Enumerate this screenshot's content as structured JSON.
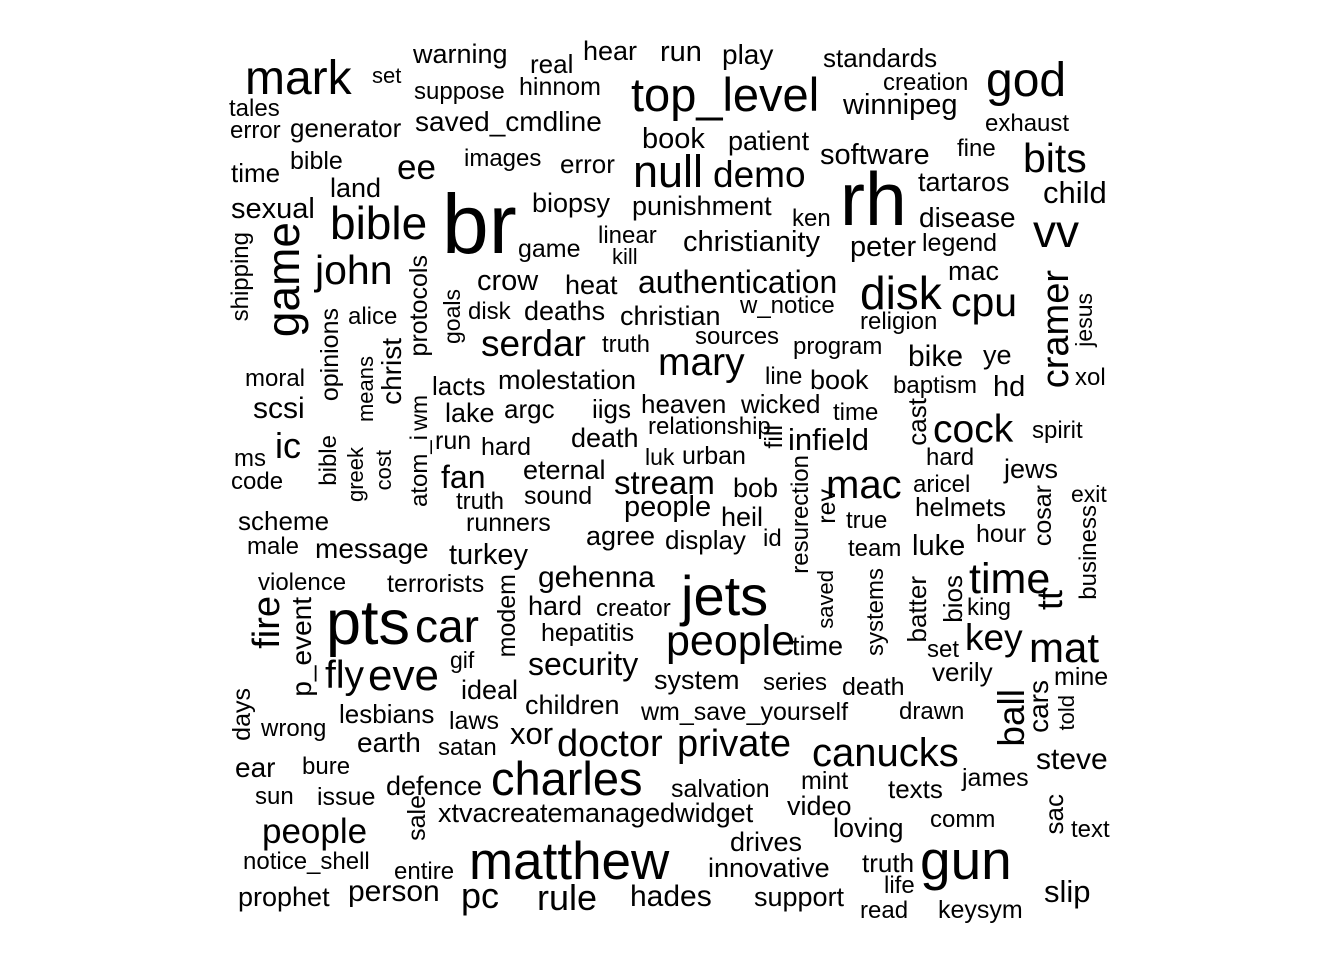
{
  "title": "",
  "text_color": "#000000",
  "background_color": "#ffffff",
  "words": [
    "mark",
    "set",
    "warning",
    "real",
    "hear",
    "run",
    "play",
    "standards",
    "god",
    "tales",
    "suppose",
    "hinnom",
    "creation",
    "top_level",
    "error",
    "generator",
    "saved_cmdline",
    "winnipeg",
    "exhaust",
    "book",
    "patient",
    "fine",
    "time",
    "bible",
    "images",
    "error",
    "null",
    "demo",
    "software",
    "bits",
    "ee",
    "land",
    "sexual",
    "bible",
    "biopsy",
    "punishment",
    "tartaros",
    "child",
    "br",
    "rh",
    "shipping",
    "game",
    "game",
    "linear",
    "kill",
    "christianity",
    "ken",
    "disease",
    "vv",
    "john",
    "legend",
    "peter",
    "crow",
    "heat",
    "authentication",
    "mac",
    "disk",
    "alice",
    "protocols",
    "goals",
    "disk",
    "deaths",
    "christian",
    "w_notice",
    "cpu",
    "religion",
    "cramer",
    "jesus",
    "serdar",
    "truth",
    "sources",
    "program",
    "opinions",
    "means",
    "christ",
    "mary",
    "bike",
    "ye",
    "moral",
    "molestation",
    "line",
    "book",
    "baptism",
    "hd",
    "xol",
    "lacts",
    "scsi",
    "wm",
    "argc",
    "iigs",
    "heaven",
    "wicked",
    "time",
    "lake",
    "relationship",
    "cast",
    "cock",
    "spirit",
    "infield",
    "ic",
    "bible",
    "run",
    "hard",
    "death",
    "fill",
    "ms",
    "greek",
    "cost",
    "atom_i",
    "luk",
    "urban",
    "hard",
    "jews",
    "code",
    "eternal",
    "fan",
    "resurection",
    "mac",
    "aricel",
    "exit",
    "stream",
    "bob",
    "truth",
    "sound",
    "cosar",
    "helmets",
    "scheme",
    "people",
    "heil",
    "runners",
    "rev",
    "true",
    "business",
    "male",
    "message",
    "agree",
    "display",
    "id",
    "team",
    "hour",
    "luke",
    "turkey",
    "violence",
    "terrorists",
    "gehenna",
    "systems",
    "time",
    "saved",
    "batter",
    "bios",
    "fire",
    "p_event",
    "modem",
    "jets",
    "king",
    "pts",
    "car",
    "hard",
    "creator",
    "key",
    "tt",
    "hepatitis",
    "people",
    "time",
    "set",
    "mat",
    "gif",
    "security",
    "fly",
    "eve",
    "verily",
    "system",
    "series",
    "death",
    "days",
    "ideal",
    "mine",
    "ball",
    "cars",
    "lesbians",
    "children",
    "told",
    "wm_save_yourself",
    "drawn",
    "wrong",
    "laws",
    "xor",
    "earth",
    "doctor",
    "private",
    "canucks",
    "satan",
    "ear",
    "bure",
    "charles",
    "steve",
    "james",
    "mint",
    "salvation",
    "texts",
    "sun",
    "issue",
    "defence",
    "video",
    "sac",
    "xtvacreatemanagedwidget",
    "comm",
    "sale",
    "loving",
    "text",
    "people",
    "drives",
    "notice_shell",
    "matthew",
    "gun",
    "entire",
    "truth",
    "innovative",
    "life",
    "prophet",
    "person",
    "pc",
    "rule",
    "hades",
    "support",
    "slip",
    "read",
    "keysym"
  ]
}
